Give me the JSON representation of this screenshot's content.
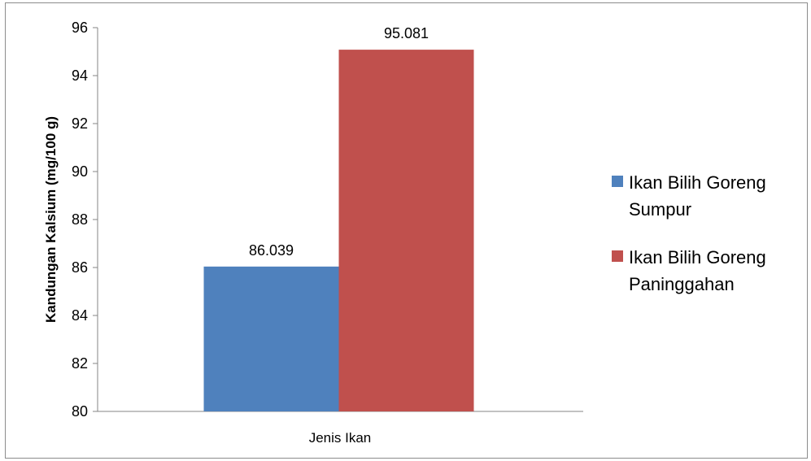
{
  "chart_data": {
    "type": "bar",
    "categories": [
      "Jenis Ikan"
    ],
    "series": [
      {
        "name": "Ikan Bilih Goreng Sumpur",
        "values": [
          86.039
        ],
        "color": "#4f81bd",
        "label": "86.039",
        "legend_lines": [
          "Ikan Bilih Goreng",
          "Sumpur"
        ]
      },
      {
        "name": "Ikan Bilih Goreng Paninggahan",
        "values": [
          95.081
        ],
        "color": "#c0504d",
        "label": "95.081",
        "legend_lines": [
          "Ikan Bilih Goreng",
          "Paninggahan"
        ]
      }
    ],
    "xlabel": "Jenis Ikan",
    "ylabel": "Kandungan Kalsium (mg/100 g)",
    "ylim": [
      80,
      96
    ],
    "yticks": [
      "80",
      "82",
      "84",
      "86",
      "88",
      "90",
      "92",
      "94",
      "96"
    ],
    "grid": false,
    "legend_position": "right"
  }
}
